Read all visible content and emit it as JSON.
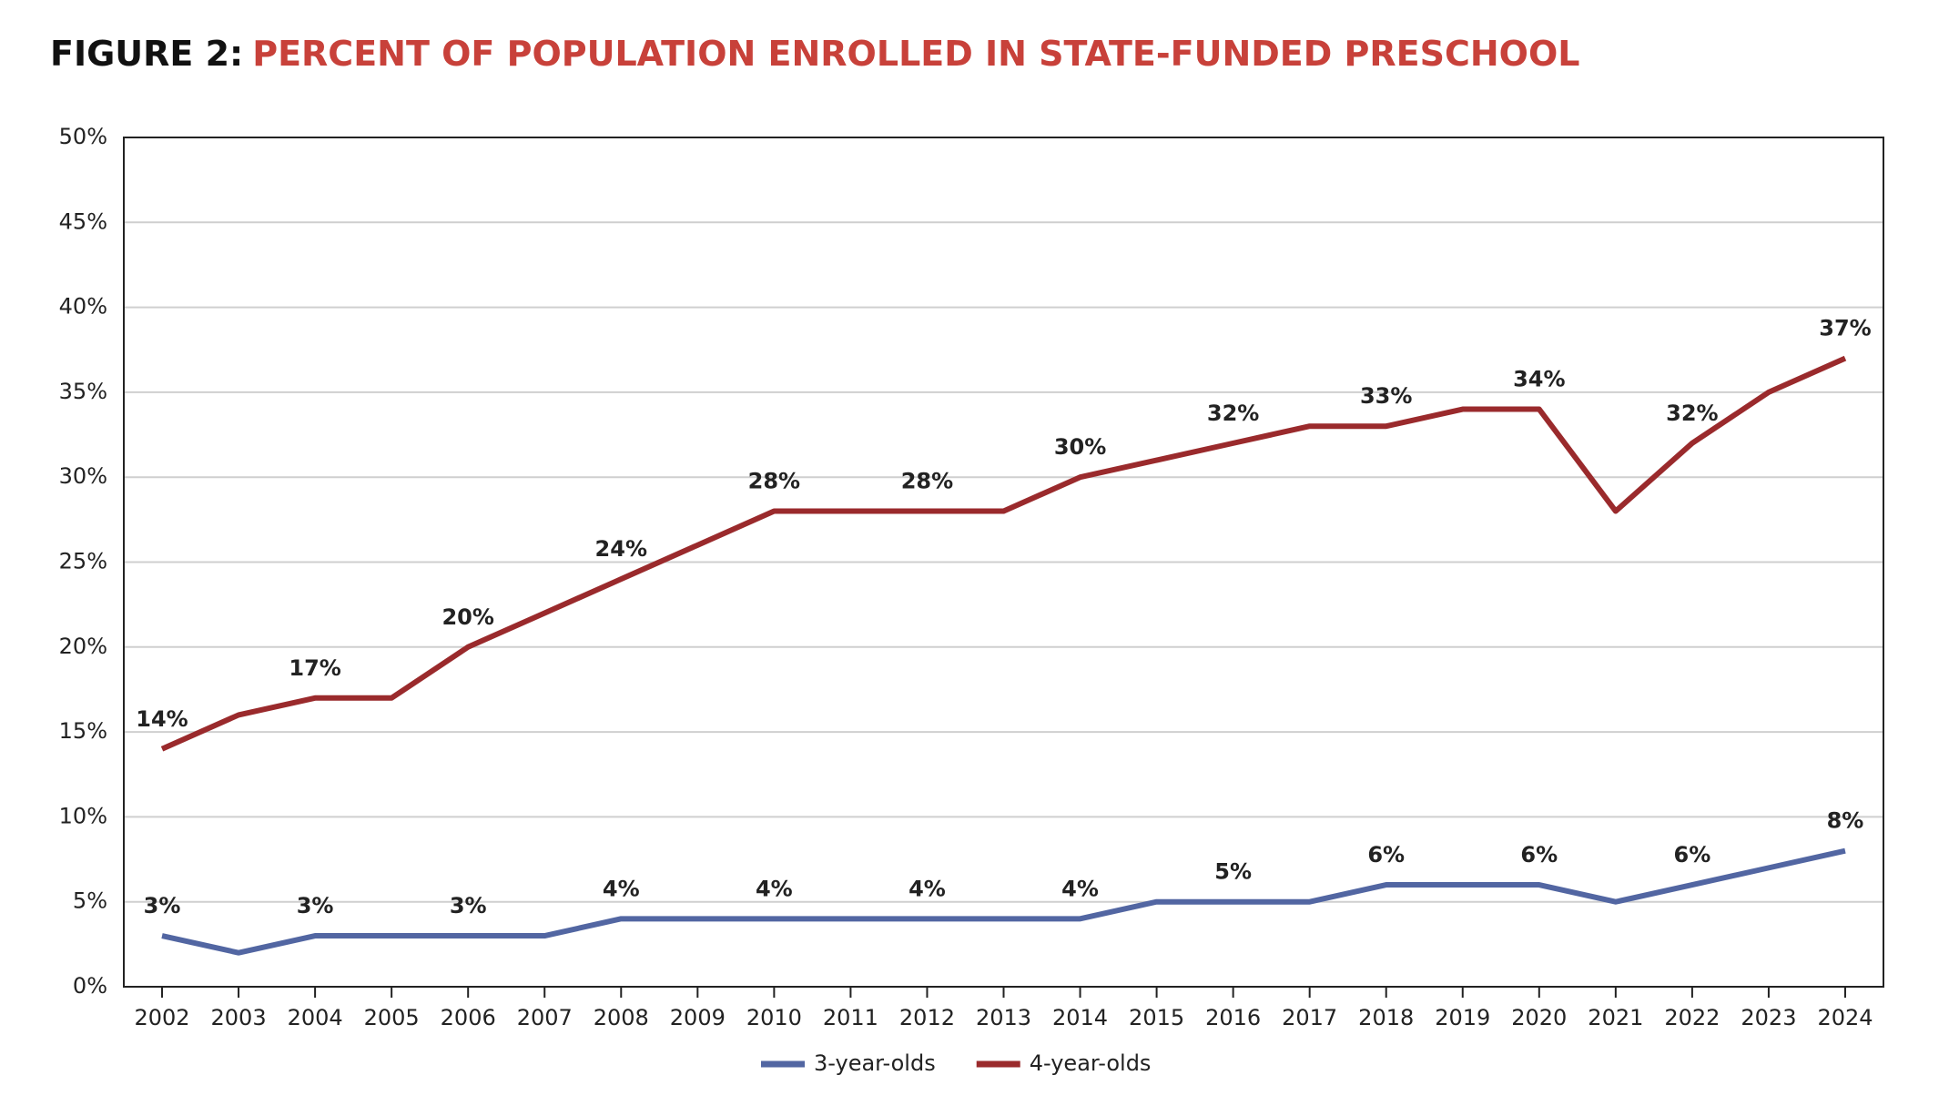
{
  "chart_data": {
    "type": "line",
    "figure_label": "FIGURE 2:",
    "title": "PERCENT OF POPULATION ENROLLED IN STATE-FUNDED PRESCHOOL",
    "categories": [
      "2002",
      "2003",
      "2004",
      "2005",
      "2006",
      "2007",
      "2008",
      "2009",
      "2010",
      "2011",
      "2012",
      "2013",
      "2014",
      "2015",
      "2016",
      "2017",
      "2018",
      "2019",
      "2020",
      "2021",
      "2022",
      "2023",
      "2024"
    ],
    "series": [
      {
        "name": "3-year-olds",
        "color": "#5266a2",
        "values": [
          3,
          2,
          3,
          3,
          3,
          3,
          4,
          4,
          4,
          4,
          4,
          4,
          4,
          5,
          5,
          5,
          6,
          6,
          6,
          5,
          6,
          7,
          8
        ],
        "value_labels": [
          "3%",
          null,
          "3%",
          null,
          "3%",
          null,
          "4%",
          null,
          "4%",
          null,
          "4%",
          null,
          "4%",
          null,
          "5%",
          null,
          "6%",
          null,
          "6%",
          null,
          "6%",
          null,
          "8%"
        ]
      },
      {
        "name": "4-year-olds",
        "color": "#9a2a2c",
        "values": [
          14,
          16,
          17,
          17,
          20,
          22,
          24,
          26,
          28,
          28,
          28,
          28,
          30,
          31,
          32,
          33,
          33,
          34,
          34,
          28,
          32,
          35,
          37
        ],
        "value_labels": [
          "14%",
          null,
          "17%",
          null,
          "20%",
          null,
          "24%",
          null,
          "28%",
          null,
          "28%",
          null,
          "30%",
          null,
          "32%",
          null,
          "33%",
          null,
          "34%",
          null,
          "32%",
          null,
          "37%"
        ]
      }
    ],
    "ylim": [
      0,
      50
    ],
    "yticks": [
      {
        "value": 0,
        "label": "0%"
      },
      {
        "value": 5,
        "label": "5%"
      },
      {
        "value": 10,
        "label": "10%"
      },
      {
        "value": 15,
        "label": "15%"
      },
      {
        "value": 20,
        "label": "20%"
      },
      {
        "value": 25,
        "label": "25%"
      },
      {
        "value": 30,
        "label": "30%"
      },
      {
        "value": 35,
        "label": "35%"
      },
      {
        "value": 40,
        "label": "40%"
      },
      {
        "value": 45,
        "label": "45%"
      },
      {
        "value": 50,
        "label": "50%"
      }
    ],
    "grid": true,
    "legend": "bottom"
  }
}
